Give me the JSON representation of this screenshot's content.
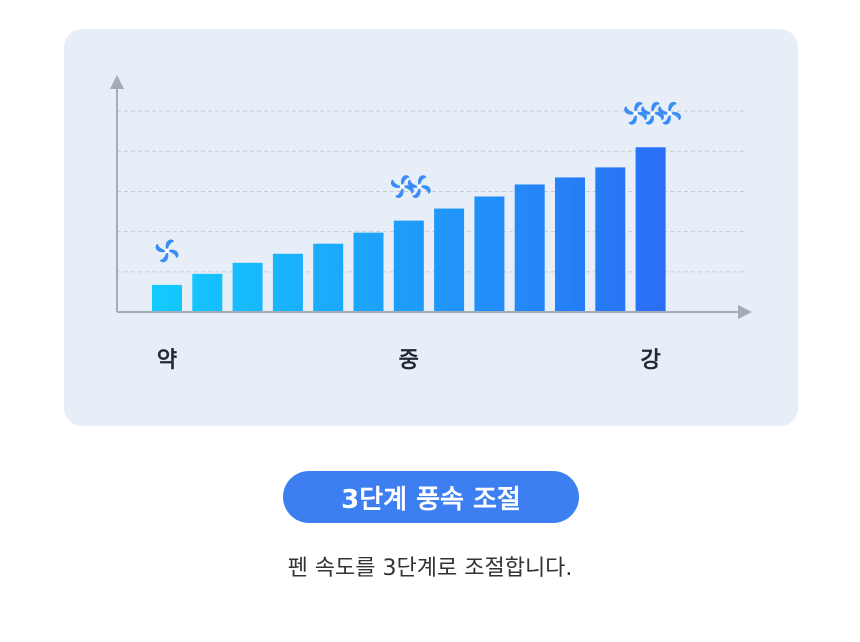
{
  "chart_data": {
    "type": "bar",
    "values": [
      27,
      38,
      49,
      58,
      68,
      79,
      91,
      103,
      115,
      127,
      134,
      144,
      164
    ],
    "x_labels": [
      {
        "index": 0,
        "text": "약"
      },
      {
        "index": 6,
        "text": "중"
      },
      {
        "index": 12,
        "text": "강"
      }
    ],
    "fan_markers": [
      {
        "index": 0,
        "count": 1
      },
      {
        "index": 6,
        "count": 2
      },
      {
        "index": 12,
        "count": 3
      }
    ],
    "ylim": [
      0,
      230
    ],
    "grid": true,
    "colors": {
      "low": "#13cbff",
      "high": "#2a6ef5",
      "axis": "#a6acb6",
      "grid": "#c7ccd4",
      "fan": "#3a8df5"
    }
  },
  "badge": {
    "label": "3단계 풍속 조절"
  },
  "description": "펜 속도를 3단계로 조절합니다."
}
